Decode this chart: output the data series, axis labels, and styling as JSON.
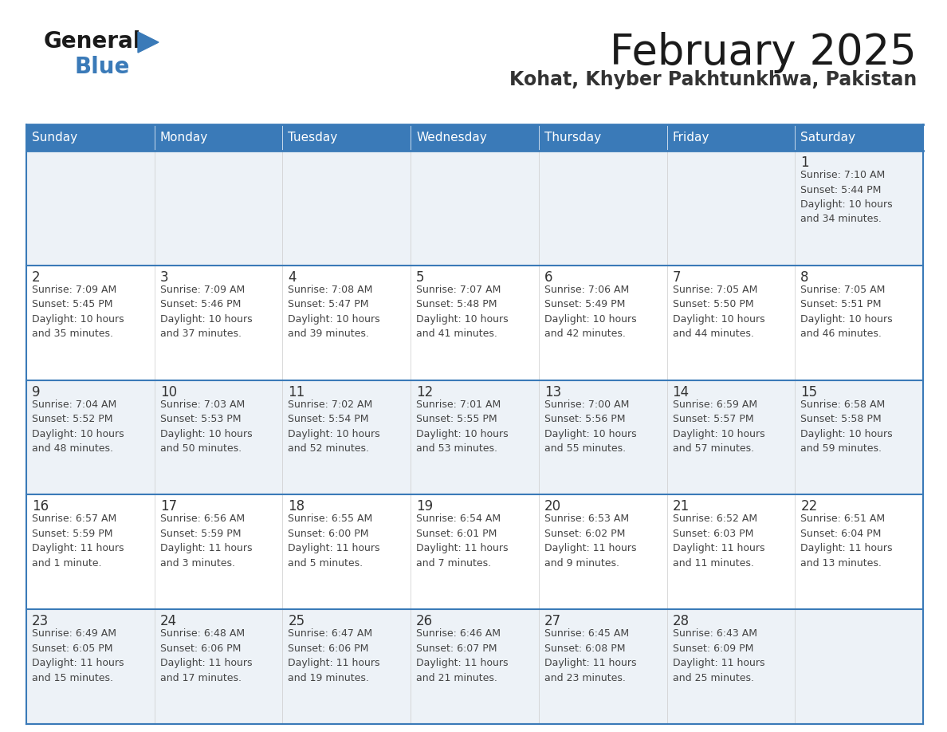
{
  "title": "February 2025",
  "subtitle": "Kohat, Khyber Pakhtunkhwa, Pakistan",
  "days_of_week": [
    "Sunday",
    "Monday",
    "Tuesday",
    "Wednesday",
    "Thursday",
    "Friday",
    "Saturday"
  ],
  "header_bg": "#3a7ab8",
  "header_text": "#ffffff",
  "cell_bg_odd": "#edf2f7",
  "cell_bg_even": "#ffffff",
  "border_color": "#3a7ab8",
  "inner_line_color": "#3a7ab8",
  "day_num_color": "#333333",
  "text_color": "#444444",
  "title_color": "#1a1a1a",
  "subtitle_color": "#333333",
  "logo_general_color": "#1a1a1a",
  "logo_blue_color": "#3a7ab8",
  "logo_triangle_color": "#3a7ab8",
  "calendar_data": [
    [
      {
        "day": null,
        "info": null
      },
      {
        "day": null,
        "info": null
      },
      {
        "day": null,
        "info": null
      },
      {
        "day": null,
        "info": null
      },
      {
        "day": null,
        "info": null
      },
      {
        "day": null,
        "info": null
      },
      {
        "day": 1,
        "info": "Sunrise: 7:10 AM\nSunset: 5:44 PM\nDaylight: 10 hours\nand 34 minutes."
      }
    ],
    [
      {
        "day": 2,
        "info": "Sunrise: 7:09 AM\nSunset: 5:45 PM\nDaylight: 10 hours\nand 35 minutes."
      },
      {
        "day": 3,
        "info": "Sunrise: 7:09 AM\nSunset: 5:46 PM\nDaylight: 10 hours\nand 37 minutes."
      },
      {
        "day": 4,
        "info": "Sunrise: 7:08 AM\nSunset: 5:47 PM\nDaylight: 10 hours\nand 39 minutes."
      },
      {
        "day": 5,
        "info": "Sunrise: 7:07 AM\nSunset: 5:48 PM\nDaylight: 10 hours\nand 41 minutes."
      },
      {
        "day": 6,
        "info": "Sunrise: 7:06 AM\nSunset: 5:49 PM\nDaylight: 10 hours\nand 42 minutes."
      },
      {
        "day": 7,
        "info": "Sunrise: 7:05 AM\nSunset: 5:50 PM\nDaylight: 10 hours\nand 44 minutes."
      },
      {
        "day": 8,
        "info": "Sunrise: 7:05 AM\nSunset: 5:51 PM\nDaylight: 10 hours\nand 46 minutes."
      }
    ],
    [
      {
        "day": 9,
        "info": "Sunrise: 7:04 AM\nSunset: 5:52 PM\nDaylight: 10 hours\nand 48 minutes."
      },
      {
        "day": 10,
        "info": "Sunrise: 7:03 AM\nSunset: 5:53 PM\nDaylight: 10 hours\nand 50 minutes."
      },
      {
        "day": 11,
        "info": "Sunrise: 7:02 AM\nSunset: 5:54 PM\nDaylight: 10 hours\nand 52 minutes."
      },
      {
        "day": 12,
        "info": "Sunrise: 7:01 AM\nSunset: 5:55 PM\nDaylight: 10 hours\nand 53 minutes."
      },
      {
        "day": 13,
        "info": "Sunrise: 7:00 AM\nSunset: 5:56 PM\nDaylight: 10 hours\nand 55 minutes."
      },
      {
        "day": 14,
        "info": "Sunrise: 6:59 AM\nSunset: 5:57 PM\nDaylight: 10 hours\nand 57 minutes."
      },
      {
        "day": 15,
        "info": "Sunrise: 6:58 AM\nSunset: 5:58 PM\nDaylight: 10 hours\nand 59 minutes."
      }
    ],
    [
      {
        "day": 16,
        "info": "Sunrise: 6:57 AM\nSunset: 5:59 PM\nDaylight: 11 hours\nand 1 minute."
      },
      {
        "day": 17,
        "info": "Sunrise: 6:56 AM\nSunset: 5:59 PM\nDaylight: 11 hours\nand 3 minutes."
      },
      {
        "day": 18,
        "info": "Sunrise: 6:55 AM\nSunset: 6:00 PM\nDaylight: 11 hours\nand 5 minutes."
      },
      {
        "day": 19,
        "info": "Sunrise: 6:54 AM\nSunset: 6:01 PM\nDaylight: 11 hours\nand 7 minutes."
      },
      {
        "day": 20,
        "info": "Sunrise: 6:53 AM\nSunset: 6:02 PM\nDaylight: 11 hours\nand 9 minutes."
      },
      {
        "day": 21,
        "info": "Sunrise: 6:52 AM\nSunset: 6:03 PM\nDaylight: 11 hours\nand 11 minutes."
      },
      {
        "day": 22,
        "info": "Sunrise: 6:51 AM\nSunset: 6:04 PM\nDaylight: 11 hours\nand 13 minutes."
      }
    ],
    [
      {
        "day": 23,
        "info": "Sunrise: 6:49 AM\nSunset: 6:05 PM\nDaylight: 11 hours\nand 15 minutes."
      },
      {
        "day": 24,
        "info": "Sunrise: 6:48 AM\nSunset: 6:06 PM\nDaylight: 11 hours\nand 17 minutes."
      },
      {
        "day": 25,
        "info": "Sunrise: 6:47 AM\nSunset: 6:06 PM\nDaylight: 11 hours\nand 19 minutes."
      },
      {
        "day": 26,
        "info": "Sunrise: 6:46 AM\nSunset: 6:07 PM\nDaylight: 11 hours\nand 21 minutes."
      },
      {
        "day": 27,
        "info": "Sunrise: 6:45 AM\nSunset: 6:08 PM\nDaylight: 11 hours\nand 23 minutes."
      },
      {
        "day": 28,
        "info": "Sunrise: 6:43 AM\nSunset: 6:09 PM\nDaylight: 11 hours\nand 25 minutes."
      },
      {
        "day": null,
        "info": null
      }
    ]
  ]
}
